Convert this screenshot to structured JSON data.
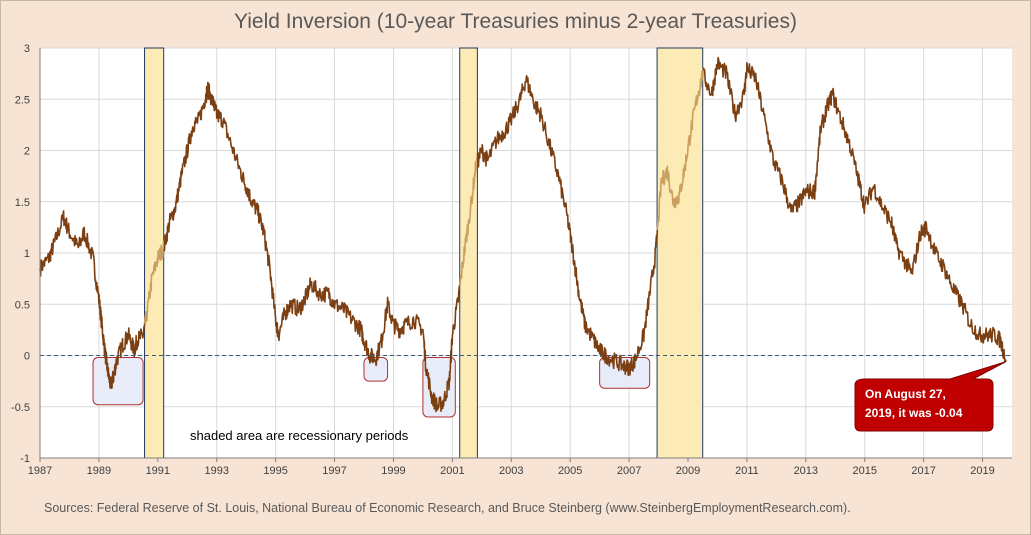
{
  "chart_data": {
    "type": "line",
    "title": "Yield Inversion (10-year Treasuries minus 2-year Treasuries)",
    "xlabel": "",
    "ylabel": "",
    "xlim": [
      1987,
      2020
    ],
    "ylim": [
      -1,
      3
    ],
    "x_ticks": [
      "1987",
      "1989",
      "1991",
      "1993",
      "1995",
      "1997",
      "1999",
      "2001",
      "2003",
      "2005",
      "2007",
      "2009",
      "2011",
      "2013",
      "2015",
      "2017",
      "2019"
    ],
    "y_ticks": [
      "-1",
      "-0.5",
      "0",
      "0.5",
      "1",
      "1.5",
      "2",
      "2.5",
      "3"
    ],
    "grid": true,
    "line_color": "#7b3f12",
    "recession_line_color": "#c9a060",
    "recession_fill": "#fcebb4",
    "inversion_box_fill": "#e8ecf8",
    "inversion_box_stroke": "#b03030",
    "zero_line_color": "#3a5a7a",
    "series": [
      {
        "values": [
          [
            1987.0,
            0.85
          ],
          [
            1987.3,
            0.95
          ],
          [
            1987.5,
            1.1
          ],
          [
            1987.8,
            1.35
          ],
          [
            1988.0,
            1.2
          ],
          [
            1988.3,
            1.05
          ],
          [
            1988.5,
            1.2
          ],
          [
            1988.8,
            0.95
          ],
          [
            1989.0,
            0.55
          ],
          [
            1989.1,
            0.3
          ],
          [
            1989.2,
            0.05
          ],
          [
            1989.3,
            -0.15
          ],
          [
            1989.4,
            -0.3
          ],
          [
            1989.5,
            -0.2
          ],
          [
            1989.6,
            -0.05
          ],
          [
            1989.8,
            0.1
          ],
          [
            1990.0,
            0.2
          ],
          [
            1990.2,
            0.05
          ],
          [
            1990.3,
            0.15
          ],
          [
            1990.5,
            0.2
          ],
          [
            1990.6,
            0.35
          ],
          [
            1990.8,
            0.75
          ],
          [
            1991.0,
            0.95
          ],
          [
            1991.2,
            1.05
          ],
          [
            1991.4,
            1.3
          ],
          [
            1991.6,
            1.45
          ],
          [
            1991.8,
            1.75
          ],
          [
            1992.0,
            2.0
          ],
          [
            1992.2,
            2.25
          ],
          [
            1992.4,
            2.3
          ],
          [
            1992.6,
            2.5
          ],
          [
            1992.7,
            2.6
          ],
          [
            1992.9,
            2.45
          ],
          [
            1993.0,
            2.35
          ],
          [
            1993.2,
            2.3
          ],
          [
            1993.5,
            2.05
          ],
          [
            1993.8,
            1.8
          ],
          [
            1994.0,
            1.65
          ],
          [
            1994.2,
            1.5
          ],
          [
            1994.4,
            1.4
          ],
          [
            1994.6,
            1.2
          ],
          [
            1994.8,
            0.85
          ],
          [
            1995.0,
            0.35
          ],
          [
            1995.1,
            0.2
          ],
          [
            1995.3,
            0.4
          ],
          [
            1995.5,
            0.5
          ],
          [
            1995.8,
            0.45
          ],
          [
            1996.0,
            0.55
          ],
          [
            1996.2,
            0.7
          ],
          [
            1996.5,
            0.6
          ],
          [
            1996.8,
            0.6
          ],
          [
            1997.0,
            0.5
          ],
          [
            1997.3,
            0.45
          ],
          [
            1997.6,
            0.35
          ],
          [
            1997.9,
            0.25
          ],
          [
            1998.0,
            0.15
          ],
          [
            1998.2,
            0.0
          ],
          [
            1998.4,
            -0.03
          ],
          [
            1998.6,
            0.15
          ],
          [
            1998.8,
            0.5
          ],
          [
            1999.0,
            0.3
          ],
          [
            1999.2,
            0.25
          ],
          [
            1999.4,
            0.3
          ],
          [
            1999.7,
            0.35
          ],
          [
            2000.0,
            0.25
          ],
          [
            2000.1,
            -0.1
          ],
          [
            2000.3,
            -0.4
          ],
          [
            2000.5,
            -0.5
          ],
          [
            2000.7,
            -0.45
          ],
          [
            2000.9,
            -0.25
          ],
          [
            2001.0,
            0.2
          ],
          [
            2001.2,
            0.55
          ],
          [
            2001.4,
            1.0
          ],
          [
            2001.6,
            1.4
          ],
          [
            2001.8,
            1.85
          ],
          [
            2002.0,
            2.0
          ],
          [
            2002.2,
            1.9
          ],
          [
            2002.5,
            2.1
          ],
          [
            2002.8,
            2.2
          ],
          [
            2003.0,
            2.3
          ],
          [
            2003.3,
            2.5
          ],
          [
            2003.5,
            2.7
          ],
          [
            2003.8,
            2.45
          ],
          [
            2004.0,
            2.35
          ],
          [
            2004.3,
            2.05
          ],
          [
            2004.6,
            1.75
          ],
          [
            2004.9,
            1.35
          ],
          [
            2005.1,
            1.0
          ],
          [
            2005.3,
            0.6
          ],
          [
            2005.5,
            0.3
          ],
          [
            2005.8,
            0.15
          ],
          [
            2006.0,
            0.05
          ],
          [
            2006.2,
            0.0
          ],
          [
            2006.5,
            -0.05
          ],
          [
            2006.8,
            -0.1
          ],
          [
            2007.0,
            -0.12
          ],
          [
            2007.2,
            -0.05
          ],
          [
            2007.5,
            0.2
          ],
          [
            2007.7,
            0.6
          ],
          [
            2007.9,
            1.0
          ],
          [
            2008.1,
            1.7
          ],
          [
            2008.3,
            1.8
          ],
          [
            2008.5,
            1.5
          ],
          [
            2008.7,
            1.55
          ],
          [
            2008.9,
            1.85
          ],
          [
            2009.1,
            2.2
          ],
          [
            2009.3,
            2.5
          ],
          [
            2009.5,
            2.75
          ],
          [
            2009.8,
            2.55
          ],
          [
            2010.0,
            2.85
          ],
          [
            2010.3,
            2.75
          ],
          [
            2010.6,
            2.35
          ],
          [
            2010.9,
            2.55
          ],
          [
            2011.0,
            2.8
          ],
          [
            2011.3,
            2.7
          ],
          [
            2011.6,
            2.3
          ],
          [
            2011.9,
            1.9
          ],
          [
            2012.2,
            1.7
          ],
          [
            2012.5,
            1.4
          ],
          [
            2012.8,
            1.5
          ],
          [
            2013.0,
            1.6
          ],
          [
            2013.3,
            1.6
          ],
          [
            2013.5,
            2.2
          ],
          [
            2013.7,
            2.4
          ],
          [
            2013.9,
            2.55
          ],
          [
            2014.2,
            2.3
          ],
          [
            2014.5,
            2.05
          ],
          [
            2014.8,
            1.7
          ],
          [
            2015.0,
            1.45
          ],
          [
            2015.3,
            1.65
          ],
          [
            2015.6,
            1.45
          ],
          [
            2015.9,
            1.3
          ],
          [
            2016.1,
            1.05
          ],
          [
            2016.4,
            0.9
          ],
          [
            2016.6,
            0.8
          ],
          [
            2016.9,
            1.2
          ],
          [
            2017.1,
            1.25
          ],
          [
            2017.4,
            1.0
          ],
          [
            2017.7,
            0.85
          ],
          [
            2018.0,
            0.65
          ],
          [
            2018.3,
            0.5
          ],
          [
            2018.6,
            0.3
          ],
          [
            2018.9,
            0.2
          ],
          [
            2019.1,
            0.2
          ],
          [
            2019.4,
            0.2
          ],
          [
            2019.6,
            0.15
          ],
          [
            2019.8,
            -0.04
          ]
        ]
      }
    ],
    "recessions": [
      [
        1990.55,
        1991.2
      ],
      [
        2001.25,
        2001.85
      ],
      [
        2007.95,
        2009.5
      ]
    ],
    "inversion_boxes": [
      {
        "x": [
          1988.8,
          1990.5
        ],
        "y": [
          -0.48,
          -0.02
        ]
      },
      {
        "x": [
          1998.0,
          1998.8
        ],
        "y": [
          -0.25,
          -0.02
        ]
      },
      {
        "x": [
          2000.0,
          2001.1
        ],
        "y": [
          -0.6,
          -0.02
        ]
      },
      {
        "x": [
          2006.0,
          2007.7
        ],
        "y": [
          -0.32,
          -0.02
        ]
      }
    ],
    "annotation_text": "shaded area are recessionary periods",
    "callout": {
      "line1": "On August 27,",
      "line2": "2019,  it was -0.04",
      "x": 2019.8,
      "y": -0.04,
      "fill": "#c00000"
    }
  },
  "source": "Sources: Federal Reserve of St. Louis, National Bureau of Economic Research, and Bruce Steinberg (www.SteinbergEmploymentResearch.com)."
}
